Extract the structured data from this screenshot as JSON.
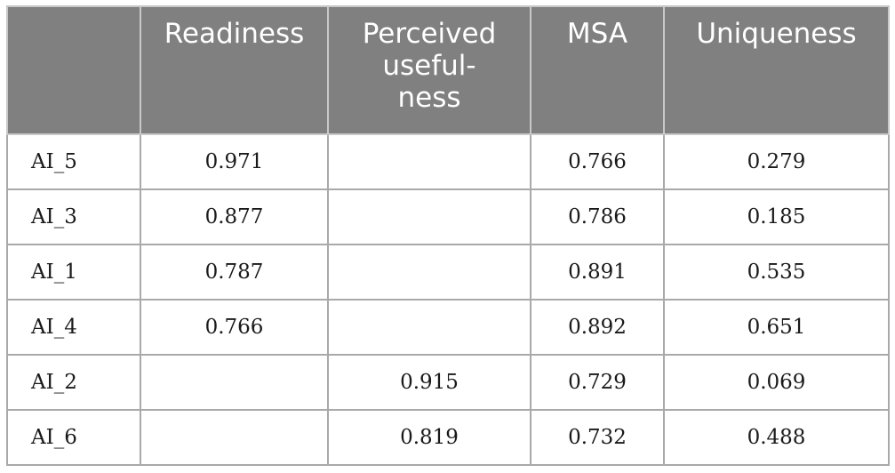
{
  "table": {
    "headers": [
      "",
      "Readiness",
      "Perceived useful-ness",
      "MSA",
      "Uniqueness"
    ],
    "header_lines": [
      [
        ""
      ],
      [
        "Readiness"
      ],
      [
        "Perceived",
        "useful-",
        "ness"
      ],
      [
        "MSA"
      ],
      [
        "Uniqueness"
      ]
    ],
    "rows": [
      {
        "label": "AI_5",
        "readiness": "0.971",
        "perceived_usefulness": "",
        "msa": "0.766",
        "uniqueness": "0.279"
      },
      {
        "label": "AI_3",
        "readiness": "0.877",
        "perceived_usefulness": "",
        "msa": "0.786",
        "uniqueness": "0.185"
      },
      {
        "label": "AI_1",
        "readiness": "0.787",
        "perceived_usefulness": "",
        "msa": "0.891",
        "uniqueness": "0.535"
      },
      {
        "label": "AI_4",
        "readiness": "0.766",
        "perceived_usefulness": "",
        "msa": "0.892",
        "uniqueness": "0.651"
      },
      {
        "label": "AI_2",
        "readiness": "",
        "perceived_usefulness": "0.915",
        "msa": "0.729",
        "uniqueness": "0.069"
      },
      {
        "label": "AI_6",
        "readiness": "",
        "perceived_usefulness": "0.819",
        "msa": "0.732",
        "uniqueness": "0.488"
      }
    ]
  },
  "colors": {
    "header_bg": "#808080",
    "header_text": "#ffffff",
    "cell_border": "#a9a9a9",
    "body_text": "#1a1a1a"
  }
}
